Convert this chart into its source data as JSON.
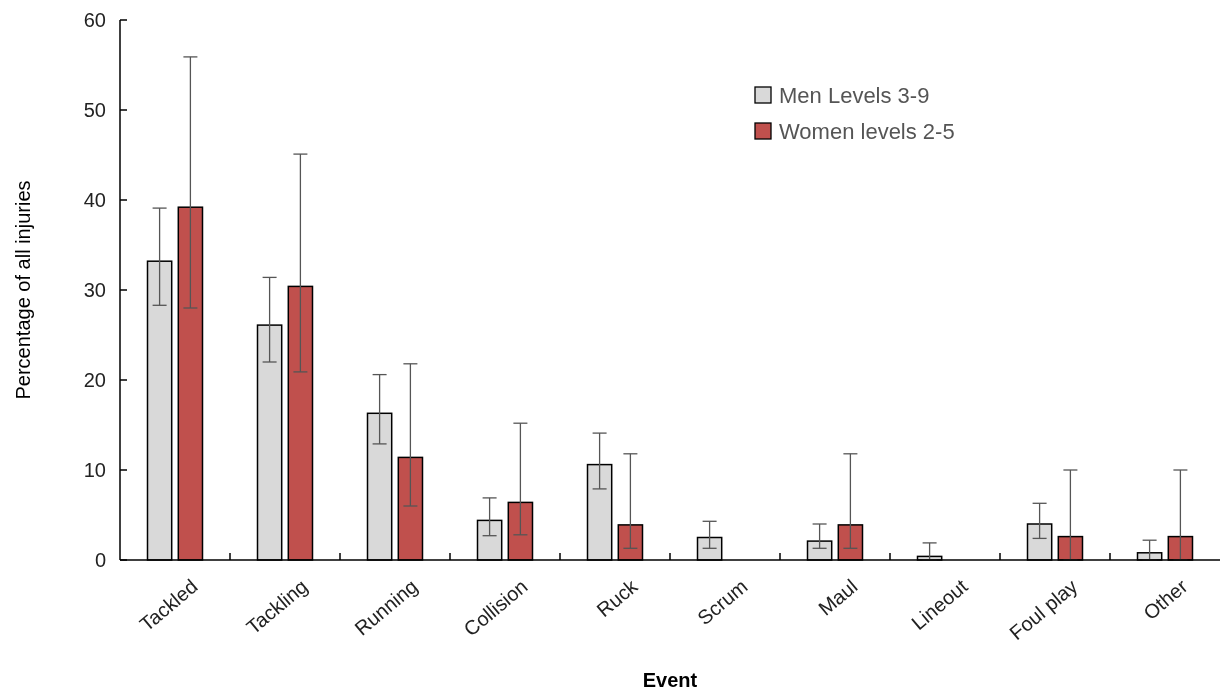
{
  "chart_data": {
    "type": "bar",
    "xlabel": "Event",
    "ylabel": "Percentage of all injuries",
    "categories": [
      "Tackled",
      "Tackling",
      "Running",
      "Collision",
      "Ruck",
      "Scrum",
      "Maul",
      "Lineout",
      "Foul play",
      "Other"
    ],
    "series": [
      {
        "name": "Men Levels 3-9",
        "color": "#d9d9d9",
        "values": [
          33.2,
          26.1,
          16.3,
          4.4,
          10.6,
          2.5,
          2.1,
          0.4,
          4.0,
          0.8
        ],
        "errors": [
          [
            28.3,
            39.1
          ],
          [
            22.0,
            31.4
          ],
          [
            12.9,
            20.6
          ],
          [
            2.7,
            6.9
          ],
          [
            7.9,
            14.1
          ],
          [
            1.3,
            4.3
          ],
          [
            1.3,
            4.0
          ],
          [
            0,
            1.9
          ],
          [
            2.4,
            6.3
          ],
          [
            0,
            2.2
          ]
        ]
      },
      {
        "name": "Women levels 2-5",
        "color": "#c0504d",
        "values": [
          39.2,
          30.4,
          11.4,
          6.4,
          3.9,
          null,
          3.9,
          null,
          2.6,
          2.6
        ],
        "errors": [
          [
            28.0,
            55.9
          ],
          [
            20.9,
            45.1
          ],
          [
            6.0,
            21.8
          ],
          [
            2.8,
            15.2
          ],
          [
            1.3,
            11.8
          ],
          null,
          [
            1.3,
            11.8
          ],
          null,
          [
            0,
            10.0
          ],
          [
            0,
            10.0
          ]
        ]
      }
    ],
    "ylim": [
      0,
      60
    ],
    "yticks": [
      0,
      10,
      20,
      30,
      40,
      50,
      60
    ],
    "grid": false,
    "legend": "top right"
  }
}
